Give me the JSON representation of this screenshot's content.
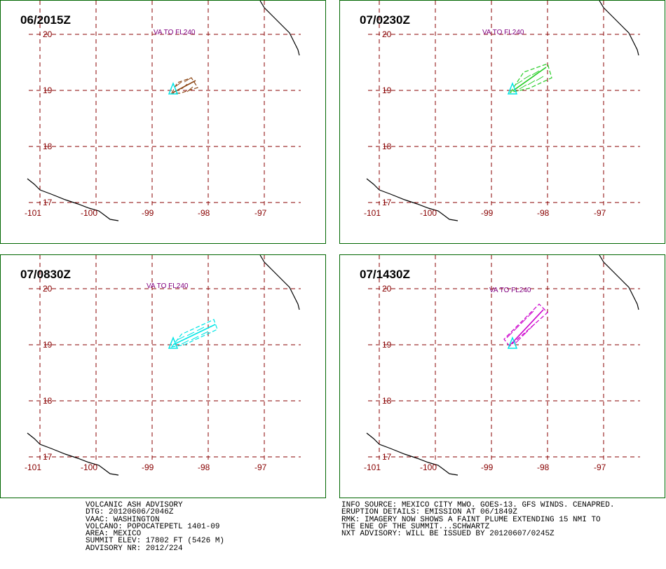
{
  "panels": [
    {
      "title": "06/2015Z",
      "va_label": "VA TO FL240",
      "plume_color": "#8b4513"
    },
    {
      "title": "07/0230Z",
      "va_label": "VA TO FL240",
      "plume_color": "#22cc22"
    },
    {
      "title": "07/0830Z",
      "va_label": "VA TO FL240",
      "plume_color": "#00e5e5"
    },
    {
      "title": "07/1430Z",
      "va_label": "VA TO FL240",
      "plume_color": "#cc00cc"
    }
  ],
  "grid": {
    "latitudes": [
      "20",
      "19",
      "18",
      "17"
    ],
    "longitudes": [
      "-101",
      "-100",
      "-99",
      "-98",
      "-97"
    ]
  },
  "colors": {
    "volcano_marker": "#00e5e5",
    "grid_line": "#880000",
    "frame": "#006600",
    "coastline": "#000000"
  },
  "advisory_left": [
    "VOLCANIC ASH ADVISORY",
    "DTG: 20120606/2046Z",
    "VAAC: WASHINGTON",
    "VOLCANO: POPOCATEPETL 1401-09",
    "AREA: MEXICO",
    "SUMMIT ELEV: 17802 FT (5426 M)",
    "ADVISORY NR: 2012/224"
  ],
  "advisory_right": [
    "INFO SOURCE: MEXICO CITY MWO. GOES-13. GFS WINDS. CENAPRED.",
    "ERUPTION DETAILS: EMISSION AT 06/1849Z",
    "RMK: IMAGERY NOW SHOWS A FAINT PLUME EXTENDING 15 NMI TO",
    "THE ENE OF THE SUMMIT...SCHWARTZ",
    "NXT ADVISORY: WILL BE ISSUED BY 20120607/0245Z"
  ]
}
